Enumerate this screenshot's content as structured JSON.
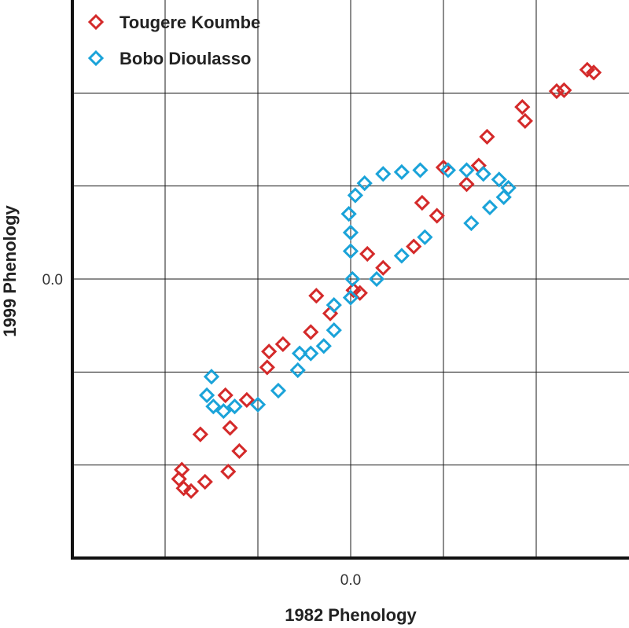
{
  "chart_data": {
    "type": "scatter",
    "title": "",
    "xlabel": "1982 Phenology",
    "ylabel": "1999 Phenology",
    "xlim": [
      -3.0,
      3.0
    ],
    "ylim": [
      -3.0,
      3.0
    ],
    "x_ticks": [
      {
        "value": 0,
        "label": "0.0"
      }
    ],
    "y_ticks": [
      {
        "value": 0,
        "label": "0.0"
      }
    ],
    "grid": true,
    "legend_position": "top-left",
    "marker": "diamond-open",
    "series": [
      {
        "name": "Tougere Koumbe",
        "color": "#d42a2a",
        "points": [
          [
            -1.82,
            -2.05
          ],
          [
            -1.85,
            -2.15
          ],
          [
            -1.8,
            -2.25
          ],
          [
            -1.72,
            -2.28
          ],
          [
            -1.57,
            -2.18
          ],
          [
            -1.62,
            -1.67
          ],
          [
            -1.35,
            -1.25
          ],
          [
            -1.3,
            -1.6
          ],
          [
            -1.32,
            -2.07
          ],
          [
            -1.2,
            -1.85
          ],
          [
            -1.12,
            -1.3
          ],
          [
            -0.9,
            -0.95
          ],
          [
            -0.88,
            -0.78
          ],
          [
            -0.73,
            -0.7
          ],
          [
            -0.43,
            -0.57
          ],
          [
            -0.37,
            -0.18
          ],
          [
            -0.22,
            -0.37
          ],
          [
            0.03,
            -0.12
          ],
          [
            0.1,
            -0.15
          ],
          [
            0.18,
            0.27
          ],
          [
            0.35,
            0.12
          ],
          [
            0.68,
            0.35
          ],
          [
            0.77,
            0.82
          ],
          [
            0.93,
            0.68
          ],
          [
            1.0,
            1.2
          ],
          [
            1.25,
            1.02
          ],
          [
            1.38,
            1.22
          ],
          [
            1.47,
            1.53
          ],
          [
            1.85,
            1.85
          ],
          [
            1.88,
            1.7
          ],
          [
            2.22,
            2.02
          ],
          [
            2.3,
            2.03
          ],
          [
            2.55,
            2.25
          ],
          [
            2.62,
            2.22
          ]
        ]
      },
      {
        "name": "Bobo Dioulasso",
        "color": "#1aa3d9",
        "points": [
          [
            -1.5,
            -1.05
          ],
          [
            -1.55,
            -1.25
          ],
          [
            -1.48,
            -1.37
          ],
          [
            -1.37,
            -1.42
          ],
          [
            -1.25,
            -1.37
          ],
          [
            -1.0,
            -1.35
          ],
          [
            -0.78,
            -1.2
          ],
          [
            -0.57,
            -0.98
          ],
          [
            -0.55,
            -0.8
          ],
          [
            -0.43,
            -0.8
          ],
          [
            -0.29,
            -0.72
          ],
          [
            -0.18,
            -0.55
          ],
          [
            -0.18,
            -0.28
          ],
          [
            0.0,
            -0.2
          ],
          [
            0.02,
            0.0
          ],
          [
            0.0,
            0.3
          ],
          [
            0.0,
            0.5
          ],
          [
            -0.02,
            0.7
          ],
          [
            0.05,
            0.9
          ],
          [
            0.15,
            1.03
          ],
          [
            0.35,
            1.13
          ],
          [
            0.55,
            1.15
          ],
          [
            0.75,
            1.17
          ],
          [
            1.05,
            1.17
          ],
          [
            1.25,
            1.17
          ],
          [
            1.43,
            1.13
          ],
          [
            1.6,
            1.07
          ],
          [
            1.7,
            0.98
          ],
          [
            1.65,
            0.88
          ],
          [
            1.5,
            0.77
          ],
          [
            1.3,
            0.6
          ],
          [
            0.8,
            0.45
          ],
          [
            0.55,
            0.25
          ],
          [
            0.28,
            0.0
          ]
        ]
      }
    ]
  }
}
